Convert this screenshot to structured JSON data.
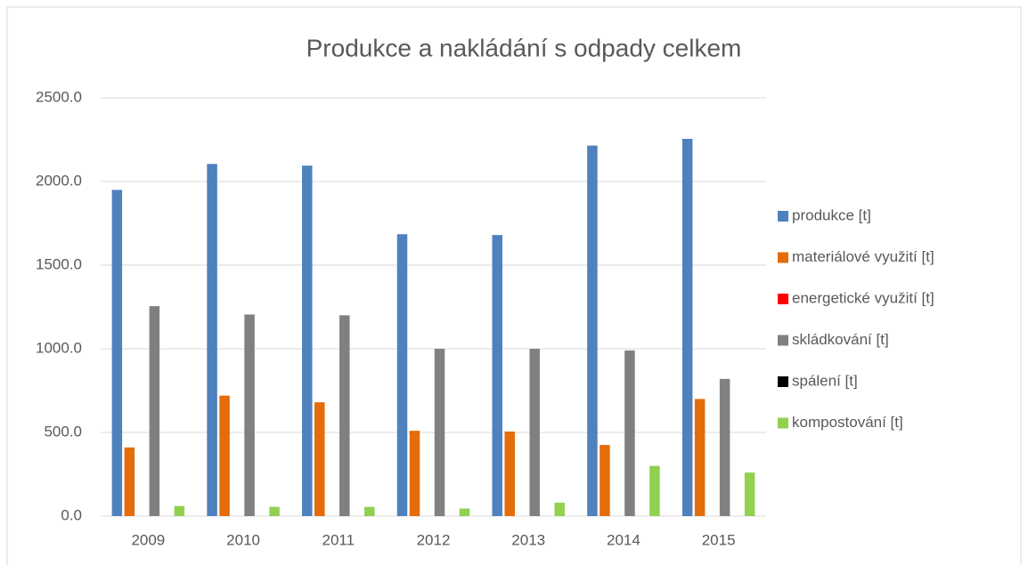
{
  "chart_data": {
    "type": "bar",
    "title": "Produkce a nakládání s odpady celkem",
    "categories": [
      "2009",
      "2010",
      "2011",
      "2012",
      "2013",
      "2014",
      "2015"
    ],
    "series": [
      {
        "name": "produkce  [t]",
        "color": "#4f81bd",
        "values": [
          1950,
          2105,
          2095,
          1685,
          1680,
          2215,
          2255
        ]
      },
      {
        "name": "materiálové využití  [t]",
        "color": "#e46c0a",
        "values": [
          410,
          720,
          680,
          510,
          505,
          425,
          700
        ]
      },
      {
        "name": "energetické využití [t]",
        "color": "#ff0000",
        "values": [
          0,
          0,
          0,
          0,
          0,
          0,
          0
        ]
      },
      {
        "name": "skládkování  [t]",
        "color": "#808080",
        "values": [
          1255,
          1205,
          1200,
          1000,
          1000,
          990,
          820
        ]
      },
      {
        "name": "spálení  [t]",
        "color": "#000000",
        "values": [
          0,
          0,
          0,
          0,
          0,
          0,
          0
        ]
      },
      {
        "name": "kompostování  [t]",
        "color": "#92d050",
        "values": [
          60,
          55,
          55,
          45,
          80,
          300,
          260
        ]
      }
    ],
    "ylim": [
      0,
      2500
    ],
    "yticks": [
      {
        "value": 0,
        "label": "0.0"
      },
      {
        "value": 500,
        "label": "500.0"
      },
      {
        "value": 1000,
        "label": "1000.0"
      },
      {
        "value": 1500,
        "label": "1500.0"
      },
      {
        "value": 2000,
        "label": "2000.0"
      },
      {
        "value": 2500,
        "label": "2500.0"
      }
    ],
    "grid": true,
    "legend": "right"
  }
}
